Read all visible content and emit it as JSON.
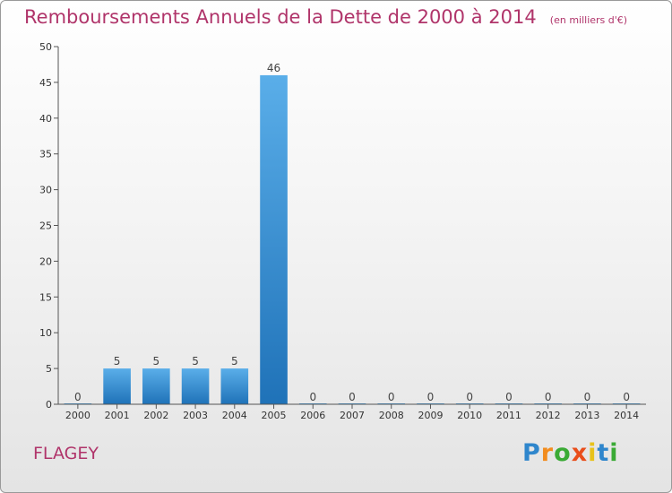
{
  "chart_data": {
    "type": "bar",
    "title": "Remboursements Annuels de la Dette de 2000 à 2014",
    "unit_note": "(en milliers d'€)",
    "categories": [
      "2000",
      "2001",
      "2002",
      "2003",
      "2004",
      "2005",
      "2006",
      "2007",
      "2008",
      "2009",
      "2010",
      "2011",
      "2012",
      "2013",
      "2014"
    ],
    "values": [
      0,
      5,
      5,
      5,
      5,
      46,
      0,
      0,
      0,
      0,
      0,
      0,
      0,
      0,
      0
    ],
    "data_labels": [
      "0",
      "5",
      "5",
      "5",
      "5",
      "46",
      "0",
      "0",
      "0",
      "0",
      "0",
      "0",
      "0",
      "0",
      "0"
    ],
    "y_ticks": [
      "0",
      "5",
      "10",
      "15",
      "20",
      "25",
      "30",
      "35",
      "40",
      "45",
      "50"
    ],
    "ylim": [
      0,
      50
    ],
    "bar_color": "#2f86cc",
    "grid": false
  },
  "footer": {
    "commune": "FLAGEY",
    "logo": {
      "letters": [
        "P",
        "r",
        "o",
        "x",
        "i",
        "t",
        "i"
      ],
      "colors": [
        "#2f86cc",
        "#f28c1e",
        "#3aaa35",
        "#e94e1b",
        "#e8c21b",
        "#2f86cc",
        "#3aaa35"
      ]
    }
  }
}
